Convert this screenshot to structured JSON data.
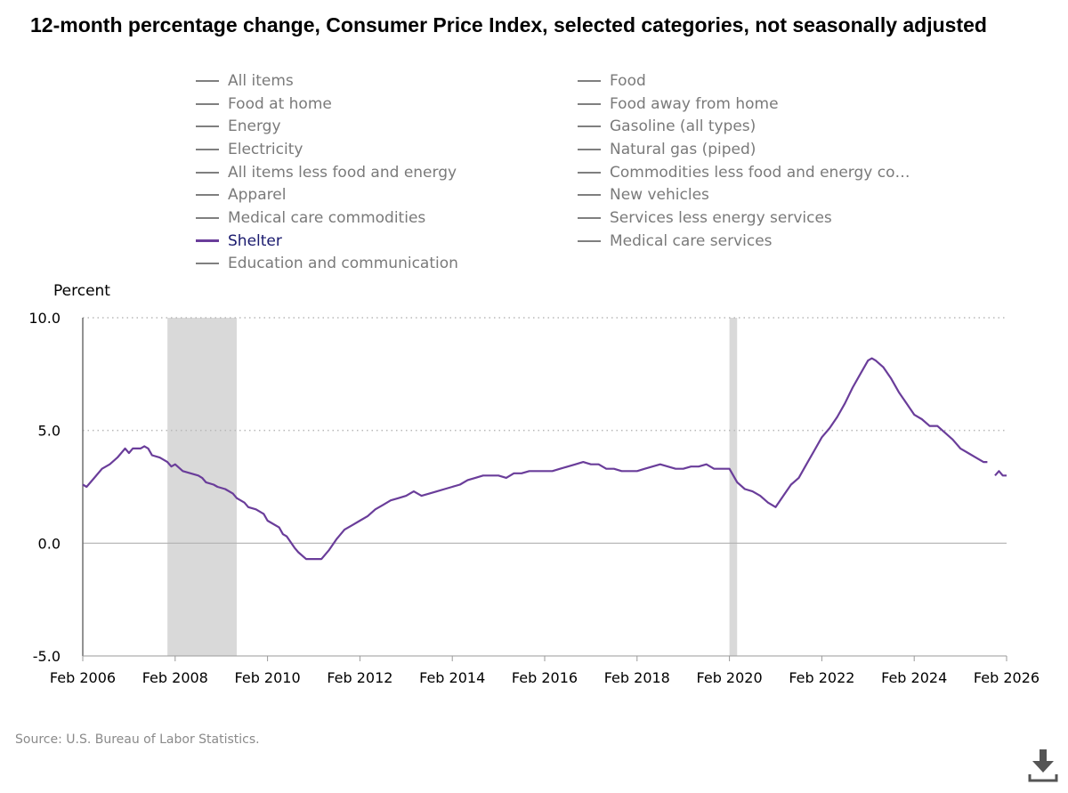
{
  "chart_data": {
    "type": "line",
    "title": "12-month percentage change, Consumer Price Index, selected categories, not seasonally adjusted",
    "ylabel": "Percent",
    "xlabel": "",
    "ylim": [
      -5.0,
      10.0
    ],
    "y_ticks": [
      "10.0",
      "5.0",
      "0.0",
      "-5.0"
    ],
    "y_tick_values": [
      10,
      5,
      0,
      -5
    ],
    "x_ticks": [
      "Feb 2006",
      "Feb 2008",
      "Feb 2010",
      "Feb 2012",
      "Feb 2014",
      "Feb 2016",
      "Feb 2018",
      "Feb 2020",
      "Feb 2022",
      "Feb 2024",
      "Feb 2026"
    ],
    "x_tick_values": [
      "2006-02",
      "2008-02",
      "2010-02",
      "2012-02",
      "2014-02",
      "2016-02",
      "2018-02",
      "2020-02",
      "2022-02",
      "2024-02",
      "2026-02"
    ],
    "xlim": [
      "2006-02",
      "2026-02"
    ],
    "grid": "dotted horizontal at 5.0 and 10.0",
    "recession_shading": [
      {
        "start": "2007-12",
        "end": "2009-06"
      },
      {
        "start": "2020-02",
        "end": "2020-04"
      }
    ],
    "series": [
      {
        "name": "Shelter",
        "color": "#6a3d9a",
        "gap_after": "2025-09",
        "points": [
          [
            "2006-02",
            2.6
          ],
          [
            "2006-03",
            2.5
          ],
          [
            "2006-05",
            2.9
          ],
          [
            "2006-07",
            3.3
          ],
          [
            "2006-09",
            3.5
          ],
          [
            "2006-11",
            3.8
          ],
          [
            "2007-01",
            4.2
          ],
          [
            "2007-02",
            4.0
          ],
          [
            "2007-03",
            4.2
          ],
          [
            "2007-05",
            4.2
          ],
          [
            "2007-06",
            4.3
          ],
          [
            "2007-07",
            4.2
          ],
          [
            "2007-08",
            3.9
          ],
          [
            "2007-10",
            3.8
          ],
          [
            "2007-12",
            3.6
          ],
          [
            "2008-01",
            3.4
          ],
          [
            "2008-02",
            3.5
          ],
          [
            "2008-04",
            3.2
          ],
          [
            "2008-06",
            3.1
          ],
          [
            "2008-08",
            3.0
          ],
          [
            "2008-09",
            2.9
          ],
          [
            "2008-10",
            2.7
          ],
          [
            "2008-12",
            2.6
          ],
          [
            "2009-01",
            2.5
          ],
          [
            "2009-03",
            2.4
          ],
          [
            "2009-05",
            2.2
          ],
          [
            "2009-06",
            2.0
          ],
          [
            "2009-08",
            1.8
          ],
          [
            "2009-09",
            1.6
          ],
          [
            "2009-11",
            1.5
          ],
          [
            "2010-01",
            1.3
          ],
          [
            "2010-02",
            1.0
          ],
          [
            "2010-03",
            0.9
          ],
          [
            "2010-05",
            0.7
          ],
          [
            "2010-06",
            0.4
          ],
          [
            "2010-07",
            0.3
          ],
          [
            "2010-09",
            -0.2
          ],
          [
            "2010-10",
            -0.4
          ],
          [
            "2010-12",
            -0.7
          ],
          [
            "2011-02",
            -0.7
          ],
          [
            "2011-04",
            -0.7
          ],
          [
            "2011-06",
            -0.3
          ],
          [
            "2011-08",
            0.2
          ],
          [
            "2011-10",
            0.6
          ],
          [
            "2011-12",
            0.8
          ],
          [
            "2012-02",
            1.0
          ],
          [
            "2012-04",
            1.2
          ],
          [
            "2012-06",
            1.5
          ],
          [
            "2012-08",
            1.7
          ],
          [
            "2012-10",
            1.9
          ],
          [
            "2012-12",
            2.0
          ],
          [
            "2013-02",
            2.1
          ],
          [
            "2013-04",
            2.3
          ],
          [
            "2013-06",
            2.1
          ],
          [
            "2013-08",
            2.2
          ],
          [
            "2013-10",
            2.3
          ],
          [
            "2013-12",
            2.4
          ],
          [
            "2014-02",
            2.5
          ],
          [
            "2014-04",
            2.6
          ],
          [
            "2014-06",
            2.8
          ],
          [
            "2014-08",
            2.9
          ],
          [
            "2014-10",
            3.0
          ],
          [
            "2014-12",
            3.0
          ],
          [
            "2015-02",
            3.0
          ],
          [
            "2015-04",
            2.9
          ],
          [
            "2015-06",
            3.1
          ],
          [
            "2015-08",
            3.1
          ],
          [
            "2015-10",
            3.2
          ],
          [
            "2015-12",
            3.2
          ],
          [
            "2016-02",
            3.2
          ],
          [
            "2016-04",
            3.2
          ],
          [
            "2016-06",
            3.3
          ],
          [
            "2016-08",
            3.4
          ],
          [
            "2016-10",
            3.5
          ],
          [
            "2016-12",
            3.6
          ],
          [
            "2017-02",
            3.5
          ],
          [
            "2017-04",
            3.5
          ],
          [
            "2017-06",
            3.3
          ],
          [
            "2017-08",
            3.3
          ],
          [
            "2017-10",
            3.2
          ],
          [
            "2017-12",
            3.2
          ],
          [
            "2018-02",
            3.2
          ],
          [
            "2018-04",
            3.3
          ],
          [
            "2018-06",
            3.4
          ],
          [
            "2018-08",
            3.5
          ],
          [
            "2018-10",
            3.4
          ],
          [
            "2018-12",
            3.3
          ],
          [
            "2019-02",
            3.3
          ],
          [
            "2019-04",
            3.4
          ],
          [
            "2019-06",
            3.4
          ],
          [
            "2019-08",
            3.5
          ],
          [
            "2019-10",
            3.3
          ],
          [
            "2019-12",
            3.3
          ],
          [
            "2020-02",
            3.3
          ],
          [
            "2020-04",
            2.7
          ],
          [
            "2020-06",
            2.4
          ],
          [
            "2020-08",
            2.3
          ],
          [
            "2020-10",
            2.1
          ],
          [
            "2020-12",
            1.8
          ],
          [
            "2021-02",
            1.6
          ],
          [
            "2021-04",
            2.1
          ],
          [
            "2021-06",
            2.6
          ],
          [
            "2021-08",
            2.9
          ],
          [
            "2021-10",
            3.5
          ],
          [
            "2021-12",
            4.1
          ],
          [
            "2022-02",
            4.7
          ],
          [
            "2022-04",
            5.1
          ],
          [
            "2022-06",
            5.6
          ],
          [
            "2022-08",
            6.2
          ],
          [
            "2022-10",
            6.9
          ],
          [
            "2022-12",
            7.5
          ],
          [
            "2023-02",
            8.1
          ],
          [
            "2023-03",
            8.2
          ],
          [
            "2023-04",
            8.1
          ],
          [
            "2023-06",
            7.8
          ],
          [
            "2023-08",
            7.3
          ],
          [
            "2023-10",
            6.7
          ],
          [
            "2023-12",
            6.2
          ],
          [
            "2024-02",
            5.7
          ],
          [
            "2024-04",
            5.5
          ],
          [
            "2024-06",
            5.2
          ],
          [
            "2024-08",
            5.2
          ],
          [
            "2024-10",
            4.9
          ],
          [
            "2024-12",
            4.6
          ],
          [
            "2025-02",
            4.2
          ],
          [
            "2025-04",
            4.0
          ],
          [
            "2025-06",
            3.8
          ],
          [
            "2025-08",
            3.6
          ],
          [
            "2025-09",
            3.6
          ],
          [
            "2025-11",
            3.0
          ],
          [
            "2025-12",
            3.2
          ],
          [
            "2026-01",
            3.0
          ],
          [
            "2026-02",
            3.0
          ]
        ]
      }
    ]
  },
  "legend": {
    "items": [
      {
        "label": "All items",
        "active": false
      },
      {
        "label": "Food",
        "active": false
      },
      {
        "label": "Food at home",
        "active": false
      },
      {
        "label": "Food away from home",
        "active": false
      },
      {
        "label": "Energy",
        "active": false
      },
      {
        "label": "Gasoline (all types)",
        "active": false
      },
      {
        "label": "Electricity",
        "active": false
      },
      {
        "label": "Natural gas (piped)",
        "active": false
      },
      {
        "label": "All items less food and energy",
        "active": false
      },
      {
        "label": "Commodities less food and energy com...",
        "active": false
      },
      {
        "label": "Apparel",
        "active": false
      },
      {
        "label": "New vehicles",
        "active": false
      },
      {
        "label": "Medical care commodities",
        "active": false
      },
      {
        "label": "Services less energy services",
        "active": false
      },
      {
        "label": "Shelter",
        "active": true
      },
      {
        "label": "Medical care services",
        "active": false
      },
      {
        "label": "Education and communication",
        "active": false
      }
    ]
  },
  "source": "Source: U.S. Bureau of Labor Statistics.",
  "download_icon": "download-icon",
  "colors": {
    "series": "#6a3d9a",
    "legend_inactive": "#7f7f7f",
    "recession_shade": "#d9d9d9",
    "axis": "#9a9a9a"
  }
}
